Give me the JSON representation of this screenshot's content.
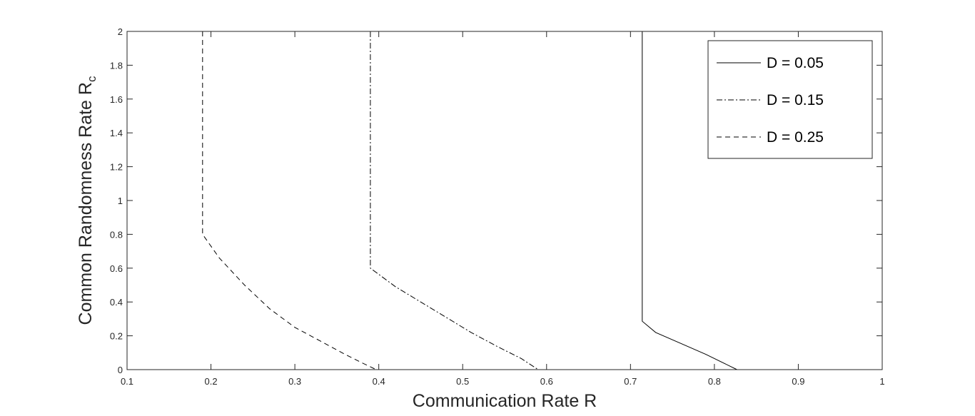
{
  "chart_data": {
    "type": "line",
    "xlabel": "Communication Rate R",
    "ylabel": "Common Randomness Rate R",
    "ylabel_subscript": "c",
    "xlim": [
      0.1,
      1
    ],
    "ylim": [
      0,
      2
    ],
    "x_ticks": [
      "0.1",
      "0.2",
      "0.3",
      "0.4",
      "0.5",
      "0.6",
      "0.7",
      "0.8",
      "0.9",
      "1"
    ],
    "y_ticks": [
      "0",
      "0.2",
      "0.4",
      "0.6",
      "0.8",
      "1",
      "1.2",
      "1.4",
      "1.6",
      "1.8",
      "2"
    ],
    "grid": false,
    "legend_position": "top-right",
    "series": [
      {
        "name": "D = 0.05",
        "style": "solid",
        "color": "#000000",
        "points": [
          [
            0.714,
            2.0
          ],
          [
            0.714,
            0.286
          ],
          [
            0.73,
            0.22
          ],
          [
            0.76,
            0.155
          ],
          [
            0.79,
            0.09
          ],
          [
            0.827,
            0.0
          ]
        ]
      },
      {
        "name": "D = 0.15",
        "style": "dashdot",
        "color": "#000000",
        "points": [
          [
            0.39,
            2.0
          ],
          [
            0.39,
            0.6
          ],
          [
            0.42,
            0.49
          ],
          [
            0.45,
            0.4
          ],
          [
            0.48,
            0.31
          ],
          [
            0.51,
            0.22
          ],
          [
            0.54,
            0.14
          ],
          [
            0.57,
            0.065
          ],
          [
            0.59,
            0.0
          ]
        ]
      },
      {
        "name": "D = 0.25",
        "style": "dashed",
        "color": "#000000",
        "points": [
          [
            0.19,
            2.0
          ],
          [
            0.19,
            0.8
          ],
          [
            0.21,
            0.66
          ],
          [
            0.24,
            0.5
          ],
          [
            0.27,
            0.36
          ],
          [
            0.3,
            0.25
          ],
          [
            0.33,
            0.17
          ],
          [
            0.36,
            0.09
          ],
          [
            0.38,
            0.04
          ],
          [
            0.397,
            0.0
          ]
        ]
      }
    ]
  }
}
